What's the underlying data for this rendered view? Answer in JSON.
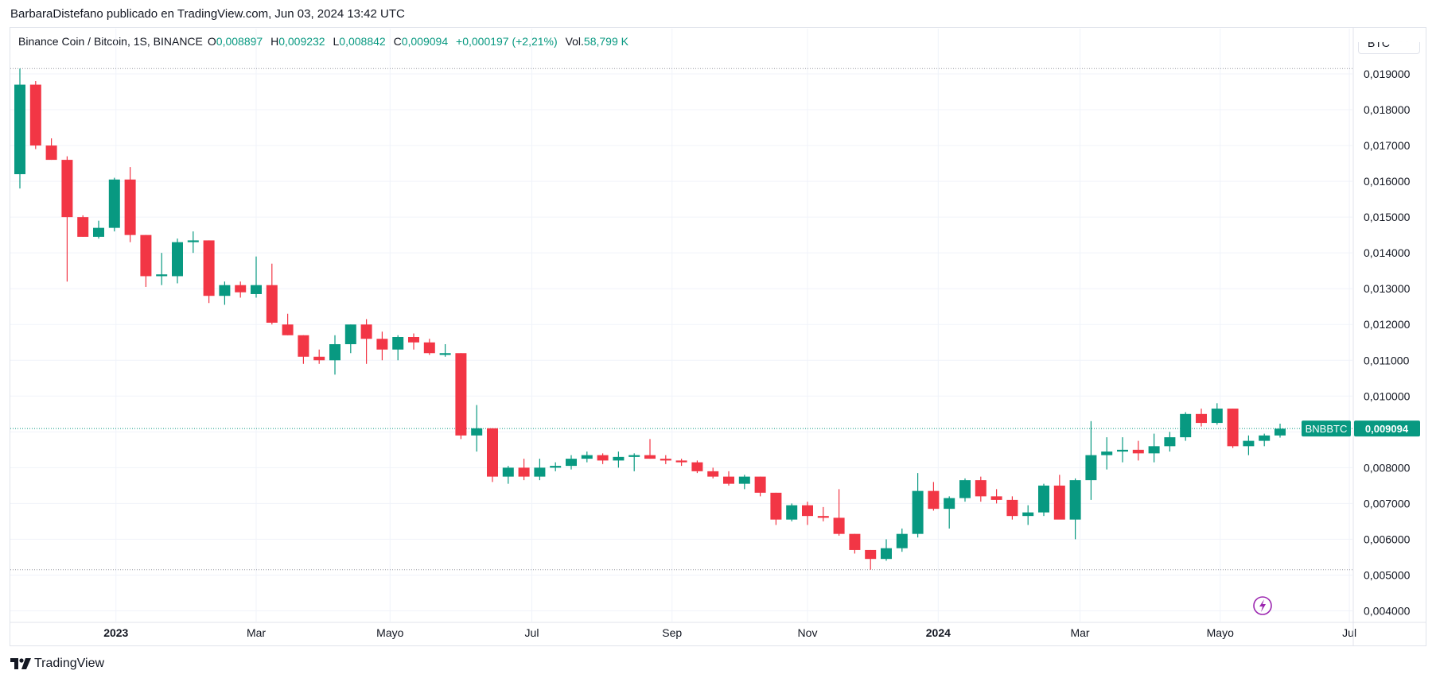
{
  "caption": "BarbaraDistefano publicado en TradingView.com, Jun 03, 2024 13:42 UTC",
  "legend": {
    "symbol": "Binance Coin / Bitcoin, 1S, BINANCE",
    "o_label": "O",
    "o_val": "0,008897",
    "h_label": "H",
    "h_val": "0,009232",
    "l_label": "L",
    "l_val": "0,008842",
    "c_label": "C",
    "c_val": "0,009094",
    "change": "+0,000197 (+2,21%)",
    "vol_label": "Vol.",
    "vol_val": "58,799 K"
  },
  "currency_button": "BTC",
  "price_tag": {
    "name": "BNBBTC",
    "value": "0,009094"
  },
  "footer": {
    "brand": "TradingView"
  },
  "icons": {
    "flash": "flash-icon",
    "logo": "tradingview-logo-icon"
  },
  "colors": {
    "up": "#089981",
    "down": "#f23645",
    "grid": "#f0f3fa",
    "text": "#131722"
  },
  "chart_data": {
    "type": "candlestick",
    "timeframe": "1S",
    "ylim": [
      0.0037,
      0.0196
    ],
    "y_ticks": [
      {
        "v": 0.004,
        "label": "0,004000"
      },
      {
        "v": 0.005,
        "label": "0,005000"
      },
      {
        "v": 0.006,
        "label": "0,006000"
      },
      {
        "v": 0.007,
        "label": "0,007000"
      },
      {
        "v": 0.008,
        "label": "0,008000"
      },
      {
        "v": 0.009,
        "label": ""
      },
      {
        "v": 0.01,
        "label": "0,010000"
      },
      {
        "v": 0.011,
        "label": "0,011000"
      },
      {
        "v": 0.012,
        "label": "0,012000"
      },
      {
        "v": 0.013,
        "label": "0,013000"
      },
      {
        "v": 0.014,
        "label": "0,014000"
      },
      {
        "v": 0.015,
        "label": "0,015000"
      },
      {
        "v": 0.016,
        "label": "0,016000"
      },
      {
        "v": 0.017,
        "label": "0,017000"
      },
      {
        "v": 0.018,
        "label": "0,018000"
      },
      {
        "v": 0.019,
        "label": "0,019000"
      }
    ],
    "x_ticks": [
      {
        "i": 6.1,
        "label": "2023",
        "bold": true
      },
      {
        "i": 15.0,
        "label": "Mar",
        "bold": false
      },
      {
        "i": 23.5,
        "label": "Mayo",
        "bold": false
      },
      {
        "i": 32.5,
        "label": "Jul",
        "bold": false
      },
      {
        "i": 41.4,
        "label": "Sep",
        "bold": false
      },
      {
        "i": 50.0,
        "label": "Nov",
        "bold": false
      },
      {
        "i": 58.3,
        "label": "2024",
        "bold": true
      },
      {
        "i": 67.3,
        "label": "Mar",
        "bold": false
      },
      {
        "i": 76.2,
        "label": "Mayo",
        "bold": false
      },
      {
        "i": 84.4,
        "label": "Jul",
        "bold": false
      }
    ],
    "high_marker": 0.01915,
    "low_marker": 0.00515,
    "last_price": 0.009094,
    "candles": [
      [
        0.0162,
        0.01915,
        0.0158,
        0.0187
      ],
      [
        0.0187,
        0.0188,
        0.0169,
        0.017
      ],
      [
        0.017,
        0.0172,
        0.0166,
        0.0166
      ],
      [
        0.0166,
        0.0167,
        0.0132,
        0.015
      ],
      [
        0.015,
        0.01505,
        0.01445,
        0.01445
      ],
      [
        0.01445,
        0.0149,
        0.0144,
        0.0147
      ],
      [
        0.0147,
        0.0161,
        0.0146,
        0.01605
      ],
      [
        0.01605,
        0.0164,
        0.0143,
        0.0145
      ],
      [
        0.0145,
        0.0145,
        0.01305,
        0.01335
      ],
      [
        0.01335,
        0.014,
        0.0131,
        0.0134
      ],
      [
        0.01335,
        0.0144,
        0.01315,
        0.0143
      ],
      [
        0.0143,
        0.0146,
        0.014,
        0.01435
      ],
      [
        0.01435,
        0.01435,
        0.0126,
        0.0128
      ],
      [
        0.0128,
        0.0132,
        0.01255,
        0.0131
      ],
      [
        0.0131,
        0.0132,
        0.01275,
        0.0129
      ],
      [
        0.01285,
        0.0139,
        0.01275,
        0.0131
      ],
      [
        0.0131,
        0.0137,
        0.012,
        0.01205
      ],
      [
        0.012,
        0.0123,
        0.0117,
        0.0117
      ],
      [
        0.0117,
        0.0117,
        0.0109,
        0.0111
      ],
      [
        0.0111,
        0.0113,
        0.0109,
        0.011
      ],
      [
        0.011,
        0.0117,
        0.0106,
        0.01145
      ],
      [
        0.01145,
        0.012,
        0.0112,
        0.012
      ],
      [
        0.012,
        0.01215,
        0.0109,
        0.0116
      ],
      [
        0.0116,
        0.0118,
        0.011,
        0.0113
      ],
      [
        0.0113,
        0.0117,
        0.011,
        0.01165
      ],
      [
        0.01165,
        0.01175,
        0.0113,
        0.0115
      ],
      [
        0.0115,
        0.0116,
        0.01115,
        0.0112
      ],
      [
        0.01115,
        0.01145,
        0.0111,
        0.0112
      ],
      [
        0.0112,
        0.0112,
        0.0088,
        0.0089
      ],
      [
        0.0089,
        0.00975,
        0.00845,
        0.0091
      ],
      [
        0.0091,
        0.0091,
        0.0076,
        0.00775
      ],
      [
        0.00775,
        0.00805,
        0.00755,
        0.008
      ],
      [
        0.008,
        0.00825,
        0.00765,
        0.00775
      ],
      [
        0.00775,
        0.00825,
        0.00765,
        0.008
      ],
      [
        0.008,
        0.00815,
        0.0079,
        0.00805
      ],
      [
        0.00805,
        0.00835,
        0.00795,
        0.00825
      ],
      [
        0.00825,
        0.00845,
        0.00815,
        0.00835
      ],
      [
        0.00835,
        0.0084,
        0.0081,
        0.0082
      ],
      [
        0.0082,
        0.00845,
        0.008,
        0.0083
      ],
      [
        0.0083,
        0.0084,
        0.0079,
        0.00835
      ],
      [
        0.00835,
        0.0088,
        0.00825,
        0.00825
      ],
      [
        0.00825,
        0.00835,
        0.0081,
        0.0082
      ],
      [
        0.0082,
        0.00825,
        0.00805,
        0.00815
      ],
      [
        0.00815,
        0.0082,
        0.00785,
        0.0079
      ],
      [
        0.0079,
        0.008,
        0.0077,
        0.00775
      ],
      [
        0.00775,
        0.0079,
        0.0075,
        0.00755
      ],
      [
        0.00755,
        0.0078,
        0.0074,
        0.00775
      ],
      [
        0.00775,
        0.00775,
        0.0072,
        0.0073
      ],
      [
        0.0073,
        0.0073,
        0.0064,
        0.00655
      ],
      [
        0.00655,
        0.007,
        0.0065,
        0.00695
      ],
      [
        0.00695,
        0.00705,
        0.0064,
        0.00665
      ],
      [
        0.00665,
        0.0069,
        0.0065,
        0.0066
      ],
      [
        0.0066,
        0.0074,
        0.0061,
        0.00615
      ],
      [
        0.00615,
        0.00615,
        0.0056,
        0.0057
      ],
      [
        0.0057,
        0.0057,
        0.00515,
        0.00545
      ],
      [
        0.00545,
        0.006,
        0.0054,
        0.00575
      ],
      [
        0.00575,
        0.0063,
        0.00565,
        0.00615
      ],
      [
        0.00615,
        0.00785,
        0.00605,
        0.00735
      ],
      [
        0.00735,
        0.0076,
        0.0068,
        0.00685
      ],
      [
        0.00685,
        0.0072,
        0.0063,
        0.00715
      ],
      [
        0.00715,
        0.0077,
        0.00705,
        0.00765
      ],
      [
        0.00765,
        0.00775,
        0.00705,
        0.0072
      ],
      [
        0.0072,
        0.0074,
        0.007,
        0.0071
      ],
      [
        0.0071,
        0.0072,
        0.00655,
        0.00665
      ],
      [
        0.00665,
        0.00695,
        0.0064,
        0.00675
      ],
      [
        0.00675,
        0.00755,
        0.00665,
        0.0075
      ],
      [
        0.0075,
        0.0078,
        0.0066,
        0.00655
      ],
      [
        0.00655,
        0.0077,
        0.006,
        0.00765
      ],
      [
        0.00765,
        0.0093,
        0.0071,
        0.00835
      ],
      [
        0.00835,
        0.00885,
        0.00795,
        0.00845
      ],
      [
        0.00845,
        0.00885,
        0.00815,
        0.0085
      ],
      [
        0.0085,
        0.00875,
        0.0082,
        0.0084
      ],
      [
        0.0084,
        0.00895,
        0.00815,
        0.0086
      ],
      [
        0.0086,
        0.009,
        0.00845,
        0.00885
      ],
      [
        0.00885,
        0.00955,
        0.00875,
        0.0095
      ],
      [
        0.0095,
        0.00965,
        0.00915,
        0.00925
      ],
      [
        0.00925,
        0.0098,
        0.0092,
        0.00965
      ],
      [
        0.00965,
        0.00965,
        0.00855,
        0.0086
      ],
      [
        0.0086,
        0.0089,
        0.00835,
        0.00875
      ],
      [
        0.00875,
        0.00895,
        0.0086,
        0.0089
      ],
      [
        0.0089,
        0.00923,
        0.00884,
        0.00909
      ]
    ]
  }
}
